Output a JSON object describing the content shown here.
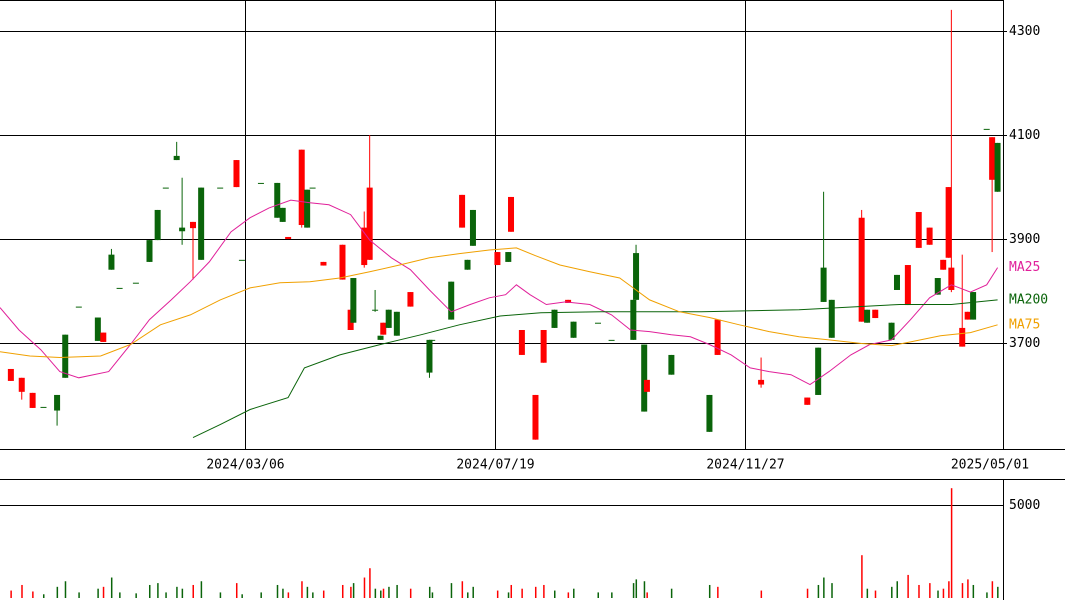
{
  "chart_data": {
    "type": "candlestick",
    "xlim": [
      0,
      369
    ],
    "xticks": [
      {
        "value": 90,
        "label": "2024/03/06"
      },
      {
        "value": 182,
        "label": "2024/07/19"
      },
      {
        "value": 274,
        "label": "2024/11/27"
      },
      {
        "value": 369,
        "label": "2025/05/01"
      }
    ],
    "ylim": [
      3496,
      4360
    ],
    "yticks": [
      3700,
      3900,
      4100,
      4300
    ],
    "grid": true,
    "up_color": "#ff0000",
    "down_color": "#0a640a",
    "candles": {
      "x": [
        4,
        8,
        12,
        16,
        21,
        24,
        29,
        36,
        38,
        41,
        44,
        50,
        55,
        58,
        61,
        65,
        67,
        71,
        74,
        81,
        87,
        89,
        96,
        102,
        104,
        106,
        111,
        113,
        115,
        119,
        126,
        129,
        130,
        134,
        136,
        138,
        140,
        141,
        143,
        146,
        151,
        158,
        159,
        166,
        170,
        172,
        174,
        183,
        187,
        188,
        192,
        197,
        200,
        204,
        209,
        211,
        220,
        225,
        233,
        234,
        237,
        238,
        247,
        261,
        264,
        280,
        297,
        301,
        303,
        306,
        317,
        319,
        322,
        328,
        330,
        334,
        338,
        342,
        345,
        347,
        349,
        350,
        354,
        356,
        358,
        363,
        365,
        367
      ],
      "open": [
        3627,
        3606,
        3575,
        3577,
        3600,
        3716,
        3770,
        3749,
        3702,
        3870,
        3806,
        3816,
        3898,
        3956,
        3999,
        4060,
        3922,
        3921,
        3999,
        3999,
        4000,
        3860,
        4008,
        4008,
        3960,
        3900,
        3927,
        3995,
        3999,
        3849,
        3822,
        3725,
        3825,
        3850,
        3860,
        3764,
        3714,
        3716,
        3764,
        3760,
        3770,
        3706,
        3706,
        3818,
        3922,
        3860,
        3956,
        3850,
        3875,
        3914,
        3677,
        3514,
        3662,
        3764,
        3777,
        3741,
        3739,
        3706,
        3783,
        3873,
        3697,
        3606,
        3677,
        3600,
        3677,
        3620,
        3581,
        3691,
        3845,
        3783,
        3741,
        3764,
        3748,
        3739,
        3831,
        3773,
        3883,
        3889,
        3825,
        3841,
        3864,
        3802,
        3693,
        3745,
        3798,
        4112,
        4014,
        4085
      ],
      "high": [
        3650,
        3633,
        3604,
        3577,
        3600,
        3716,
        3770,
        3749,
        3720,
        3881,
        3806,
        3816,
        3898,
        3956,
        3999,
        4087,
        4018,
        3933,
        3999,
        3999,
        4052,
        3860,
        4008,
        4008,
        3960,
        3904,
        4072,
        3995,
        3999,
        3856,
        3889,
        3764,
        3825,
        3953,
        4100,
        3802,
        3714,
        3739,
        3764,
        3760,
        3798,
        3706,
        3706,
        3818,
        3985,
        3860,
        3956,
        3875,
        3875,
        3981,
        3725,
        3600,
        3725,
        3764,
        3783,
        3741,
        3739,
        3706,
        3783,
        3889,
        3697,
        3629,
        3677,
        3600,
        3745,
        3672,
        3595,
        3691,
        3991,
        3783,
        3956,
        3764,
        3764,
        3739,
        3831,
        3850,
        3952,
        3922,
        3825,
        3860,
        4000,
        4341,
        3870,
        3760,
        3798,
        4112,
        4096,
        4085
      ],
      "low": [
        3627,
        3591,
        3575,
        3577,
        3541,
        3633,
        3770,
        3704,
        3702,
        3841,
        3806,
        3816,
        3856,
        3898,
        3999,
        4052,
        3889,
        3822,
        3860,
        3999,
        4000,
        3860,
        4008,
        3941,
        3933,
        3900,
        3922,
        3922,
        3999,
        3849,
        3822,
        3725,
        3739,
        3845,
        3860,
        3760,
        3706,
        3716,
        3729,
        3714,
        3770,
        3633,
        3706,
        3745,
        3922,
        3841,
        3887,
        3850,
        3856,
        3914,
        3677,
        3514,
        3662,
        3729,
        3777,
        3710,
        3739,
        3706,
        3706,
        3783,
        3568,
        3606,
        3639,
        3529,
        3677,
        3614,
        3581,
        3600,
        3779,
        3710,
        3741,
        3739,
        3748,
        3706,
        3802,
        3773,
        3883,
        3889,
        3793,
        3841,
        3864,
        3798,
        3693,
        3745,
        3745,
        4112,
        3875,
        3991
      ],
      "close": [
        3650,
        3633,
        3604,
        3577,
        3570,
        3633,
        3770,
        3704,
        3720,
        3841,
        3806,
        3816,
        3856,
        3898,
        3999,
        4052,
        3915,
        3933,
        3860,
        3999,
        4052,
        3860,
        4008,
        3941,
        3933,
        3904,
        4072,
        3922,
        3999,
        3856,
        3889,
        3764,
        3739,
        3922,
        3999,
        3764,
        3706,
        3739,
        3729,
        3714,
        3798,
        3643,
        3706,
        3745,
        3985,
        3841,
        3887,
        3875,
        3856,
        3981,
        3725,
        3600,
        3725,
        3729,
        3783,
        3710,
        3739,
        3706,
        3706,
        3783,
        3568,
        3629,
        3639,
        3529,
        3745,
        3629,
        3595,
        3600,
        3779,
        3710,
        3941,
        3739,
        3764,
        3706,
        3802,
        3850,
        3952,
        3922,
        3793,
        3860,
        4000,
        3845,
        3729,
        3760,
        3745,
        4112,
        4096,
        3991
      ]
    },
    "series": [
      {
        "name": "MA25",
        "color": "#e0209a",
        "x": [
          0,
          7,
          15,
          22,
          29,
          40,
          48,
          55,
          63,
          70,
          77,
          85,
          92,
          99,
          107,
          114,
          121,
          129,
          136,
          144,
          151,
          158,
          166,
          173,
          180,
          186,
          190,
          195,
          201,
          208,
          217,
          225,
          232,
          239,
          247,
          254,
          261,
          269,
          276,
          283,
          291,
          298,
          305,
          313,
          320,
          328,
          335,
          342,
          350,
          357,
          363,
          367
        ],
        "values": [
          3768,
          3725,
          3687,
          3645,
          3633,
          3645,
          3697,
          3745,
          3783,
          3818,
          3856,
          3914,
          3941,
          3960,
          3975,
          3970,
          3966,
          3947,
          3898,
          3864,
          3841,
          3802,
          3760,
          3774,
          3787,
          3793,
          3812,
          3793,
          3774,
          3779,
          3774,
          3754,
          3725,
          3722,
          3716,
          3712,
          3697,
          3677,
          3652,
          3645,
          3639,
          3620,
          3645,
          3677,
          3697,
          3706,
          3745,
          3787,
          3812,
          3798,
          3812,
          3845
        ]
      },
      {
        "name": "MA200",
        "color": "#0a640a",
        "x": [
          71,
          81,
          92,
          106,
          112,
          125,
          140,
          155,
          169,
          184,
          199,
          221,
          258,
          294,
          331,
          350,
          367
        ],
        "values": [
          3518,
          3543,
          3572,
          3595,
          3652,
          3677,
          3697,
          3716,
          3735,
          3752,
          3758,
          3760,
          3760,
          3764,
          3774,
          3774,
          3783
        ]
      },
      {
        "name": "MA75",
        "color": "#f0a000",
        "x": [
          0,
          11,
          22,
          37,
          48,
          59,
          70,
          81,
          92,
          103,
          114,
          125,
          136,
          147,
          158,
          169,
          180,
          190,
          197,
          206,
          217,
          228,
          239,
          250,
          261,
          272,
          283,
          294,
          305,
          317,
          328,
          335,
          346,
          357,
          367
        ],
        "values": [
          3683,
          3675,
          3672,
          3675,
          3697,
          3735,
          3754,
          3783,
          3806,
          3816,
          3818,
          3825,
          3837,
          3850,
          3864,
          3872,
          3879,
          3883,
          3868,
          3850,
          3837,
          3825,
          3783,
          3760,
          3749,
          3735,
          3722,
          3712,
          3706,
          3699,
          3695,
          3702,
          3714,
          3720,
          3735
        ]
      }
    ],
    "volume": {
      "ylim": [
        0,
        6340
      ],
      "yticks": [
        5000
      ],
      "values": [
        400,
        700,
        350,
        200,
        600,
        900,
        300,
        500,
        600,
        1100,
        300,
        250,
        700,
        800,
        300,
        600,
        500,
        700,
        900,
        300,
        800,
        200,
        300,
        700,
        500,
        300,
        900,
        600,
        300,
        400,
        700,
        600,
        800,
        1100,
        1600,
        500,
        400,
        500,
        600,
        700,
        500,
        600,
        300,
        800,
        900,
        300,
        600,
        400,
        300,
        700,
        500,
        600,
        700,
        400,
        300,
        500,
        300,
        300,
        800,
        1000,
        900,
        300,
        500,
        700,
        600,
        400,
        500,
        700,
        1100,
        800,
        2300,
        500,
        400,
        600,
        900,
        1240,
        700,
        800,
        400,
        500,
        900,
        5900,
        800,
        1000,
        700,
        300,
        900,
        600
      ]
    }
  }
}
